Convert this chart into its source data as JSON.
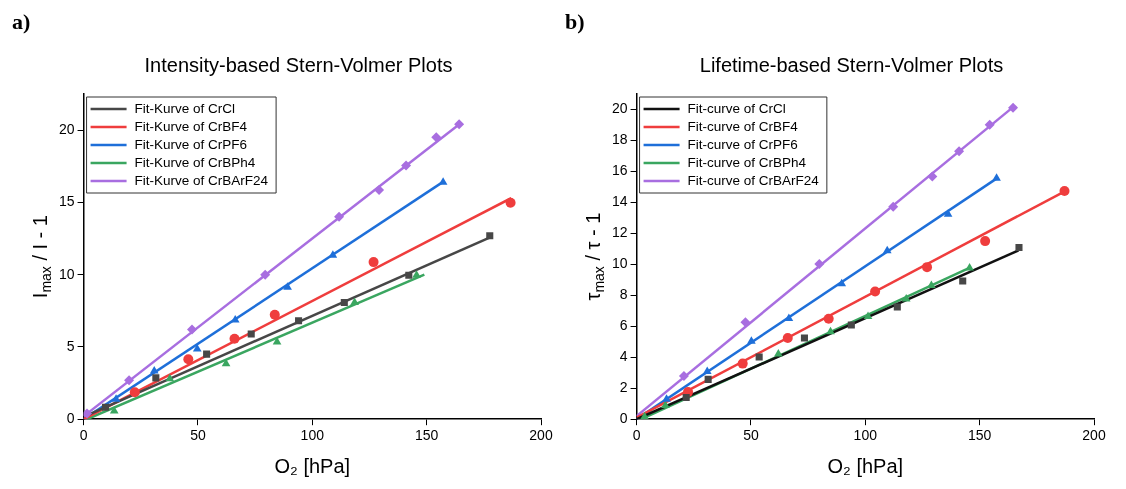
{
  "chart_data": [
    {
      "type": "scatter",
      "title": "Intensity-based Stern-Volmer Plots",
      "xlabel": "O₂ [hPa]",
      "ylabel": "I$_{max}$ / I - 1",
      "annotations": [
        "a)"
      ],
      "xlim": [
        0,
        200
      ],
      "xticks": [
        0,
        50,
        100,
        150,
        200
      ],
      "ylim": [
        0,
        22.5
      ],
      "yticks": [
        0,
        5,
        10,
        15,
        20
      ],
      "grid": false,
      "legend": "top left",
      "series": [
        {
          "type": "line",
          "name": "Fit-Kurve of CrCl",
          "color": "#474747",
          "marker": "none",
          "x": [
            2,
            178
          ],
          "values": [
            0.3,
            12.6
          ]
        },
        {
          "type": "line",
          "name": "Fit-Kurve of CrBF4",
          "color": "#ef3d3d",
          "marker": "none",
          "x": [
            0,
            187
          ],
          "values": [
            0,
            15.3
          ]
        },
        {
          "type": "line",
          "name": "Fit-Kurve of CrPF6",
          "color": "#1e6fd9",
          "marker": "none",
          "x": [
            0,
            157
          ],
          "values": [
            0,
            16.4
          ]
        },
        {
          "type": "line",
          "name": "Fit-Kurve of CrBPh4",
          "color": "#3aa660",
          "marker": "none",
          "x": [
            1.5,
            149
          ],
          "values": [
            0,
            10.0
          ]
        },
        {
          "type": "line",
          "name": "Fit-Kurve of CrBArF24",
          "color": "#a86ee0",
          "marker": "none",
          "x": [
            0,
            165
          ],
          "values": [
            0.2,
            20.5
          ]
        },
        {
          "type": "scatter",
          "color": "#474747",
          "marker": "square",
          "x": [
            9.6,
            31.6,
            53.8,
            73.3,
            94,
            114,
            142.2,
            177.6
          ],
          "values": [
            0.83,
            2.86,
            4.5,
            5.9,
            6.81,
            8.08,
            9.96,
            12.69
          ]
        },
        {
          "type": "scatter",
          "color": "#ef3d3d",
          "marker": "circle",
          "x": [
            22.4,
            45.8,
            66,
            83.6,
            126.8,
            186.7
          ],
          "values": [
            1.86,
            4.15,
            5.57,
            7.23,
            10.87,
            14.98
          ]
        },
        {
          "type": "scatter",
          "color": "#1e6fd9",
          "marker": "triangle",
          "x": [
            14.2,
            30.9,
            49.7,
            66.3,
            89.2,
            109,
            157.2
          ],
          "values": [
            1.38,
            3.34,
            4.85,
            6.86,
            9.13,
            11.35,
            16.4
          ]
        },
        {
          "type": "scatter",
          "color": "#3aa660",
          "marker": "triangle",
          "x": [
            13.4,
            37.7,
            62.3,
            84.6,
            118.5,
            145.6
          ],
          "values": [
            0.57,
            2.8,
            3.84,
            5.35,
            8.08,
            9.96
          ]
        },
        {
          "type": "scatter",
          "color": "#a86ee0",
          "marker": "diamond",
          "x": [
            1.5,
            19.9,
            47.4,
            79.4,
            111.7,
            129.2,
            141,
            154.2,
            164.2
          ],
          "values": [
            0.39,
            2.7,
            6.2,
            10.0,
            14.0,
            15.85,
            17.55,
            19.5,
            20.4
          ]
        }
      ]
    },
    {
      "type": "scatter",
      "title": "Lifetime-based Stern-Volmer Plots",
      "xlabel": "O₂ [hPa]",
      "ylabel": "τ$_{max}$ / τ - 1",
      "annotations": [
        "b)"
      ],
      "xlim": [
        0,
        200
      ],
      "xticks": [
        0,
        50,
        100,
        150,
        200
      ],
      "ylim": [
        0,
        21
      ],
      "yticks": [
        0,
        2,
        4,
        6,
        8,
        10,
        12,
        14,
        16,
        18,
        20
      ],
      "grid": false,
      "legend": "top left",
      "series": [
        {
          "type": "line",
          "name": "Fit-curve of CrCl",
          "color": "#111111",
          "marker": "none",
          "x": [
            0,
            167
          ],
          "values": [
            0,
            10.9
          ]
        },
        {
          "type": "line",
          "name": "Fit-curve of CrBF4",
          "color": "#ef3d3d",
          "marker": "none",
          "x": [
            0,
            187
          ],
          "values": [
            0.1,
            14.7
          ]
        },
        {
          "type": "line",
          "name": "Fit-curve of CrPF6",
          "color": "#1e6fd9",
          "marker": "none",
          "x": [
            0,
            158
          ],
          "values": [
            0,
            15.6
          ]
        },
        {
          "type": "line",
          "name": "Fit-curve of CrBPh4",
          "color": "#3aa660",
          "marker": "none",
          "x": [
            2,
            146
          ],
          "values": [
            0,
            9.8
          ]
        },
        {
          "type": "line",
          "name": "Fit-curve of CrBArF24",
          "color": "#a86ee0",
          "marker": "none",
          "x": [
            0,
            165
          ],
          "values": [
            0.2,
            20.2
          ]
        },
        {
          "type": "scatter",
          "color": "#474747",
          "marker": "square",
          "x": [
            21.7,
            31.3,
            53.6,
            73.4,
            93.9,
            114,
            142.6,
            167.2
          ],
          "values": [
            1.4,
            2.57,
            4.02,
            5.24,
            6.08,
            7.25,
            8.93,
            11.09
          ]
        },
        {
          "type": "scatter",
          "color": "#ef3d3d",
          "marker": "circle",
          "x": [
            22.5,
            46.4,
            66.1,
            84,
            104.3,
            127,
            152.4,
            187.1
          ],
          "values": [
            1.75,
            3.59,
            5.24,
            6.49,
            8.25,
            9.82,
            11.5,
            14.74
          ]
        },
        {
          "type": "scatter",
          "color": "#1e6fd9",
          "marker": "triangle",
          "x": [
            13.1,
            30.9,
            50.2,
            66.6,
            89.7,
            109.6,
            136.2,
            157.4
          ],
          "values": [
            1.29,
            3.08,
            5.03,
            6.51,
            8.75,
            10.88,
            13.24,
            15.56
          ]
        },
        {
          "type": "scatter",
          "color": "#3aa660",
          "marker": "triangle",
          "x": [
            3.5,
            12.6,
            62,
            84.8,
            101.2,
            117.9,
            128.9,
            145.6
          ],
          "values": [
            0.16,
            0.88,
            4.21,
            5.65,
            6.63,
            7.76,
            8.64,
            9.77
          ]
        },
        {
          "type": "scatter",
          "color": "#a86ee0",
          "marker": "diamond",
          "x": [
            20.7,
            47.6,
            79.9,
            112.2,
            129.3,
            141,
            154.4,
            164.6
          ],
          "values": [
            2.79,
            6.26,
            10.02,
            13.72,
            15.67,
            17.31,
            19.01,
            20.12
          ]
        }
      ]
    }
  ]
}
